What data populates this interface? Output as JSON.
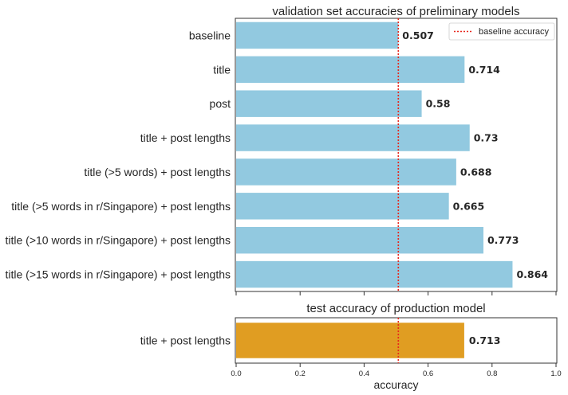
{
  "chart_data": [
    {
      "type": "bar",
      "orientation": "horizontal",
      "title": "validation set accuracies of preliminary models",
      "categories": [
        "baseline",
        "title",
        "post",
        "title + post lengths",
        "title (>5 words) + post lengths",
        "title (>5 words in r/Singapore) + post lengths",
        "title (>10 words in r/Singapore) + post lengths",
        "title (>15 words in r/Singapore) + post lengths"
      ],
      "values": [
        0.507,
        0.714,
        0.58,
        0.73,
        0.688,
        0.665,
        0.773,
        0.864
      ],
      "data_labels": [
        "0.507",
        "0.714",
        "0.58",
        "0.73",
        "0.688",
        "0.665",
        "0.773",
        "0.864"
      ],
      "bar_color": "#92c9e0",
      "xlim": [
        0,
        1
      ],
      "reference_line": {
        "value": 0.507,
        "label": "baseline accuracy",
        "color": "#e8261c",
        "style": "dotted"
      },
      "legend": {
        "placement": "top-right",
        "entries": [
          "baseline accuracy"
        ]
      },
      "grid": false
    },
    {
      "type": "bar",
      "orientation": "horizontal",
      "title": "test accuracy of production model",
      "categories": [
        "title + post lengths"
      ],
      "values": [
        0.713
      ],
      "data_labels": [
        "0.713"
      ],
      "bar_color": "#e09d22",
      "xlim": [
        0,
        1
      ],
      "xticks": [
        "0.0",
        "0.2",
        "0.4",
        "0.6",
        "0.8",
        "1.0"
      ],
      "xlabel": "accuracy",
      "reference_line": {
        "value": 0.507,
        "color": "#e8261c",
        "style": "dotted"
      },
      "grid": false
    }
  ]
}
